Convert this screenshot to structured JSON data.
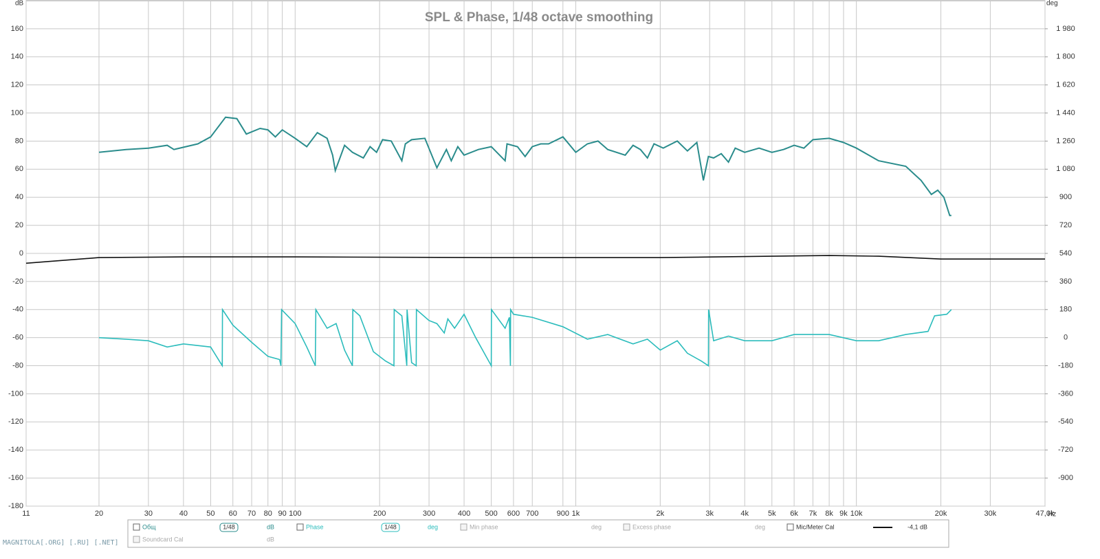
{
  "chart_data": {
    "type": "line",
    "title": "SPL & Phase, 1/48 octave smoothing",
    "y_label": "dB",
    "y2_label": "deg",
    "x_unit": "Hz",
    "xscale": "log",
    "grid": true,
    "xlim": [
      11,
      47000
    ],
    "xticks": [
      {
        "value": 11,
        "label": "11"
      },
      {
        "value": 20,
        "label": "20"
      },
      {
        "value": 30,
        "label": "30"
      },
      {
        "value": 40,
        "label": "40"
      },
      {
        "value": 50,
        "label": "50"
      },
      {
        "value": 60,
        "label": "60"
      },
      {
        "value": 70,
        "label": "70"
      },
      {
        "value": 80,
        "label": "80"
      },
      {
        "value": 90,
        "label": "90"
      },
      {
        "value": 100,
        "label": "100"
      },
      {
        "value": 200,
        "label": "200"
      },
      {
        "value": 300,
        "label": "300"
      },
      {
        "value": 400,
        "label": "400"
      },
      {
        "value": 500,
        "label": "500"
      },
      {
        "value": 600,
        "label": "600"
      },
      {
        "value": 700,
        "label": "700"
      },
      {
        "value": 900,
        "label": "900"
      },
      {
        "value": 1000,
        "label": "1k"
      },
      {
        "value": 2000,
        "label": "2k"
      },
      {
        "value": 3000,
        "label": "3k"
      },
      {
        "value": 4000,
        "label": "4k"
      },
      {
        "value": 5000,
        "label": "5k"
      },
      {
        "value": 6000,
        "label": "6k"
      },
      {
        "value": 7000,
        "label": "7k"
      },
      {
        "value": 8000,
        "label": "8k"
      },
      {
        "value": 9000,
        "label": "9k"
      },
      {
        "value": 10000,
        "label": "10k"
      },
      {
        "value": 20000,
        "label": "20k"
      },
      {
        "value": 30000,
        "label": "30k"
      },
      {
        "value": 47000,
        "label": "47,0k"
      }
    ],
    "ylim": [
      -180,
      180
    ],
    "yticks": [
      -180,
      -160,
      -140,
      -120,
      -100,
      -80,
      -60,
      -40,
      -20,
      0,
      20,
      40,
      60,
      80,
      100,
      120,
      140,
      160
    ],
    "y2lim": [
      -1080,
      2160
    ],
    "y2ticks": [
      -900,
      -720,
      -540,
      -360,
      -180,
      0,
      180,
      360,
      540,
      720,
      900,
      {
        "value": 1080,
        "label": "1 080"
      },
      {
        "value": 1260,
        "label": "1 260"
      },
      {
        "value": 1440,
        "label": "1 440"
      },
      {
        "value": 1620,
        "label": "1 620"
      },
      {
        "value": 1800,
        "label": "1 800"
      },
      {
        "value": 1980,
        "label": "1 980"
      }
    ],
    "series": [
      {
        "name": "Общ",
        "color": "#2a8c8c",
        "axis": "y",
        "smoothing": "1/48",
        "unit": "dB",
        "x": [
          20,
          25,
          30,
          35,
          37,
          45,
          50,
          56.5,
          62,
          67,
          75,
          80,
          85,
          90,
          100,
          110,
          120,
          130,
          136,
          139,
          150,
          160,
          175,
          185,
          195,
          205,
          220,
          240,
          247,
          260,
          290,
          320,
          346,
          360,
          380,
          400,
          450,
          500,
          560,
          569,
          620,
          660,
          700,
          750,
          800,
          900,
          1000,
          1100,
          1200,
          1300,
          1500,
          1600,
          1700,
          1800,
          1900,
          2050,
          2300,
          2500,
          2700,
          2850,
          2970,
          3100,
          3300,
          3500,
          3700,
          4000,
          4500,
          5000,
          5500,
          6000,
          6500,
          7000,
          8000,
          9000,
          10000,
          12000,
          15000,
          17000,
          18500,
          19500,
          20500,
          21500,
          21800
        ],
        "values": [
          72,
          74,
          75,
          77,
          74,
          78,
          83,
          97,
          96,
          85,
          89,
          88,
          83,
          88,
          82,
          76,
          86,
          82,
          70,
          59,
          77,
          72,
          68,
          76,
          72,
          81,
          80,
          66,
          78,
          81,
          82,
          61,
          74,
          66,
          76,
          70,
          74,
          76,
          66,
          78,
          76,
          69,
          76,
          78,
          78,
          83,
          72,
          78,
          80,
          74,
          70,
          77,
          74,
          68,
          78,
          75,
          80,
          73,
          79,
          52,
          69,
          68,
          71,
          65,
          75,
          72,
          75,
          72,
          74,
          77,
          75,
          81,
          82,
          79,
          75,
          66,
          62,
          52,
          42,
          45,
          40,
          27,
          27
        ]
      },
      {
        "name": "Phase",
        "color": "#2bbcbc",
        "axis": "y2",
        "smoothing": "1/48",
        "unit": "deg",
        "x": [
          20,
          25,
          30,
          35,
          40,
          50,
          55,
          55.1,
          60,
          70,
          80,
          88,
          89,
          89.5,
          100,
          110,
          118,
          118.5,
          130,
          140,
          150,
          160,
          160.5,
          170,
          190,
          210,
          225,
          225.5,
          240,
          250,
          250.5,
          260,
          270,
          270.5,
          300,
          320,
          340,
          350,
          370,
          400,
          440,
          500,
          500.5,
          560,
          580,
          585,
          586,
          600,
          700,
          900,
          1100,
          1300,
          1600,
          1800,
          2000,
          2300,
          2500,
          2800,
          2970,
          2975,
          3100,
          3500,
          4000,
          5000,
          6000,
          8000,
          10000,
          12000,
          15000,
          18000,
          19000,
          21000,
          21800
        ],
        "values": [
          0,
          -10,
          -20,
          -60,
          -40,
          -60,
          -180,
          180,
          80,
          -30,
          -120,
          -140,
          -180,
          180,
          90,
          -60,
          -180,
          180,
          60,
          90,
          -80,
          -180,
          180,
          140,
          -90,
          -150,
          -180,
          180,
          140,
          -180,
          180,
          -160,
          -180,
          180,
          110,
          90,
          30,
          120,
          60,
          150,
          0,
          -180,
          180,
          60,
          130,
          -180,
          180,
          150,
          130,
          70,
          -10,
          20,
          -40,
          -10,
          -80,
          -20,
          -100,
          -150,
          -180,
          180,
          -20,
          10,
          -20,
          -20,
          20,
          20,
          -20,
          -20,
          20,
          40,
          140,
          150,
          180
        ]
      },
      {
        "name": "Mic/Meter Cal",
        "color": "#111111",
        "axis": "y",
        "legend_value": "-4,1 dB",
        "x": [
          11,
          20,
          40,
          100,
          500,
          2000,
          5000,
          8000,
          12000,
          20000,
          47000
        ],
        "values": [
          -7,
          -3,
          -2.5,
          -2.5,
          -3,
          -3,
          -2,
          -1.5,
          -2,
          -4,
          -4
        ]
      }
    ],
    "other_legend": [
      {
        "name": "Min phase",
        "unit": "deg"
      },
      {
        "name": "Excess phase",
        "unit": "deg"
      },
      {
        "name": "Soundcard Cal",
        "unit": "dB"
      }
    ],
    "watermark": "MAGNITOLA[.ORG] [.RU] [.NET]"
  }
}
